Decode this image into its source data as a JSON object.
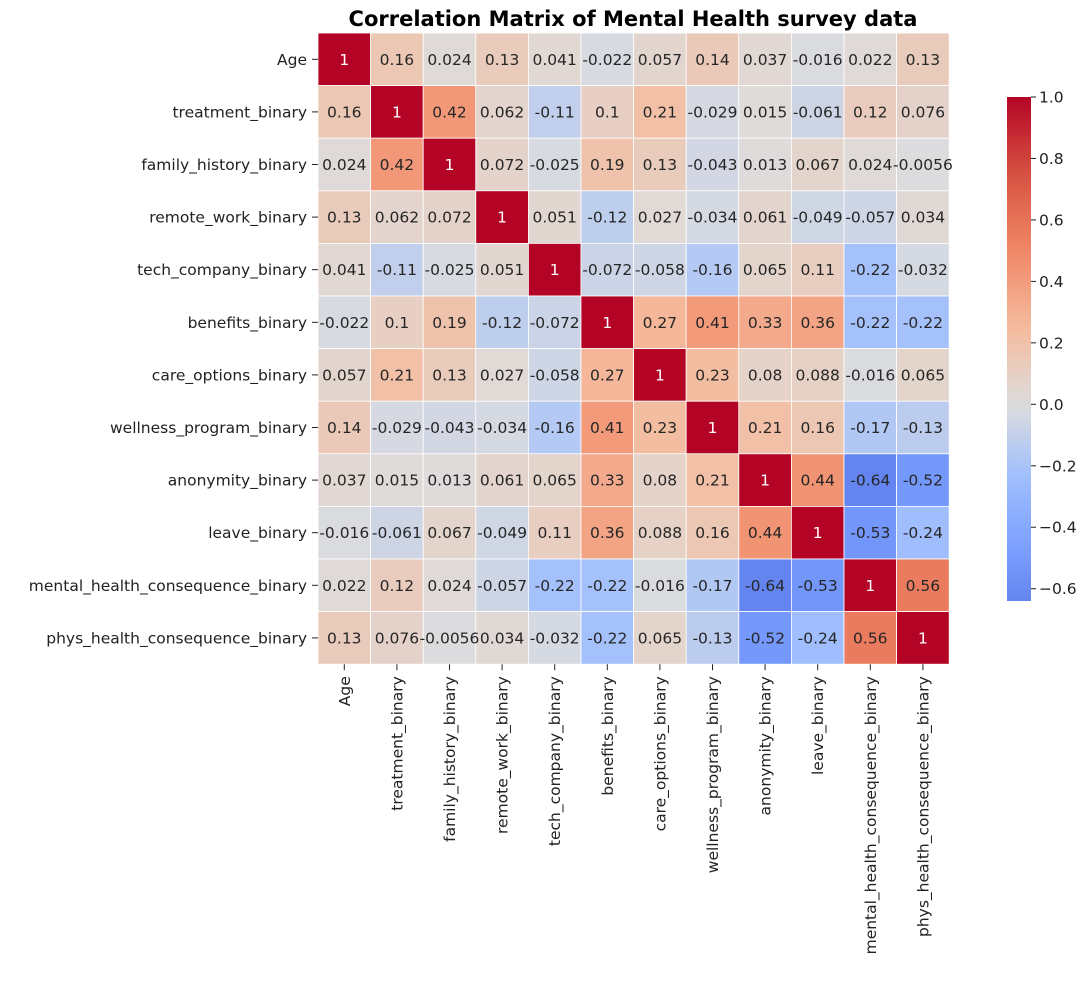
{
  "chart_data": {
    "type": "heatmap",
    "title": "Correlation Matrix  of Mental Health survey data",
    "variables": [
      "Age",
      "treatment_binary",
      "family_history_binary",
      "remote_work_binary",
      "tech_company_binary",
      "benefits_binary",
      "care_options_binary",
      "wellness_program_binary",
      "anonymity_binary",
      "leave_binary",
      "mental_health_consequence_binary",
      "phys_health_consequence_binary"
    ],
    "values": [
      [
        1,
        0.16,
        0.024,
        0.13,
        0.041,
        -0.022,
        0.057,
        0.14,
        0.037,
        -0.016,
        0.022,
        0.13
      ],
      [
        0.16,
        1,
        0.42,
        0.062,
        -0.11,
        0.1,
        0.21,
        -0.029,
        0.015,
        -0.061,
        0.12,
        0.076
      ],
      [
        0.024,
        0.42,
        1,
        0.072,
        -0.025,
        0.19,
        0.13,
        -0.043,
        0.013,
        0.067,
        0.024,
        -0.0056
      ],
      [
        0.13,
        0.062,
        0.072,
        1,
        0.051,
        -0.12,
        0.027,
        -0.034,
        0.061,
        -0.049,
        -0.057,
        0.034
      ],
      [
        0.041,
        -0.11,
        -0.025,
        0.051,
        1,
        -0.072,
        -0.058,
        -0.16,
        0.065,
        0.11,
        -0.22,
        -0.032
      ],
      [
        -0.022,
        0.1,
        0.19,
        -0.12,
        -0.072,
        1,
        0.27,
        0.41,
        0.33,
        0.36,
        -0.22,
        -0.22
      ],
      [
        0.057,
        0.21,
        0.13,
        0.027,
        -0.058,
        0.27,
        1,
        0.23,
        0.08,
        0.088,
        -0.016,
        0.065
      ],
      [
        0.14,
        -0.029,
        -0.043,
        -0.034,
        -0.16,
        0.41,
        0.23,
        1,
        0.21,
        0.16,
        -0.17,
        -0.13
      ],
      [
        0.037,
        0.015,
        0.013,
        0.061,
        0.065,
        0.33,
        0.08,
        0.21,
        1,
        0.44,
        -0.64,
        -0.52
      ],
      [
        -0.016,
        -0.061,
        0.067,
        -0.049,
        0.11,
        0.36,
        0.088,
        0.16,
        0.44,
        1,
        -0.53,
        -0.24
      ],
      [
        0.022,
        0.12,
        0.024,
        -0.057,
        -0.22,
        -0.22,
        -0.016,
        -0.17,
        -0.64,
        -0.53,
        1,
        0.56
      ],
      [
        0.13,
        0.076,
        -0.0056,
        0.034,
        -0.032,
        -0.22,
        0.065,
        -0.13,
        -0.52,
        -0.24,
        0.56,
        1
      ]
    ],
    "colormap": "coolwarm",
    "center": 0,
    "vlim": [
      -0.64,
      1.0
    ],
    "annotations": true,
    "colorbar": {
      "position": "right",
      "ticks": [
        1.0,
        0.8,
        0.6,
        0.4,
        0.2,
        0.0,
        -0.2,
        -0.4,
        -0.6
      ],
      "tick_labels": [
        "1.0",
        "0.8",
        "0.6",
        "0.4",
        "0.2",
        "0.0",
        "−0.2",
        "−0.4",
        "−0.6"
      ]
    }
  }
}
